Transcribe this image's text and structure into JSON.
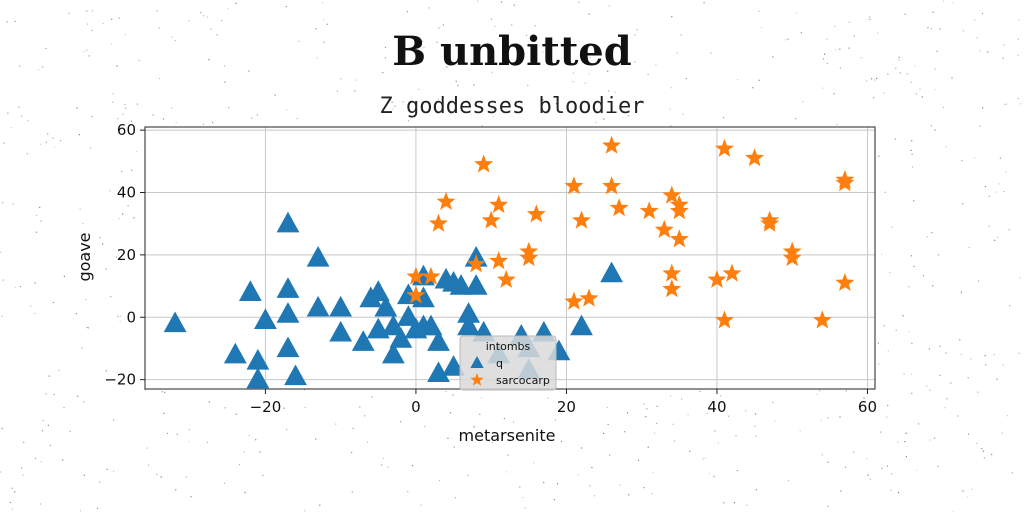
{
  "title": "B unbitted",
  "chart_data": {
    "type": "scatter",
    "title": "Z goddesses bloodier",
    "xlabel": "metarsenite",
    "ylabel": "goave",
    "xlim": [
      -36,
      61
    ],
    "ylim": [
      -23,
      61
    ],
    "xticks": [
      -20,
      0,
      20,
      40,
      60
    ],
    "yticks": [
      -20,
      0,
      20,
      40,
      60
    ],
    "grid": true,
    "legend": {
      "title": "intombs",
      "placement": "lower-center"
    },
    "series": [
      {
        "name": "q",
        "marker": "triangle",
        "color": "#1f77b4",
        "points": [
          [
            -32,
            -2
          ],
          [
            -24,
            -12
          ],
          [
            -21,
            -14
          ],
          [
            -21,
            -20
          ],
          [
            -22,
            8
          ],
          [
            -20,
            -1
          ],
          [
            -17,
            30
          ],
          [
            -17,
            -10
          ],
          [
            -16,
            -19
          ],
          [
            -17,
            9
          ],
          [
            -17,
            1
          ],
          [
            -13,
            19
          ],
          [
            -13,
            3
          ],
          [
            -10,
            3
          ],
          [
            -10,
            -5
          ],
          [
            -7,
            -8
          ],
          [
            -6,
            6
          ],
          [
            -5,
            8
          ],
          [
            -5,
            -4
          ],
          [
            -4,
            3
          ],
          [
            -3,
            -3
          ],
          [
            -3,
            -12
          ],
          [
            -2,
            -7
          ],
          [
            -1,
            7
          ],
          [
            -1,
            0
          ],
          [
            0,
            -4
          ],
          [
            1,
            13
          ],
          [
            1,
            6
          ],
          [
            1,
            -3
          ],
          [
            2,
            -3
          ],
          [
            3,
            -8
          ],
          [
            3,
            -18
          ],
          [
            4,
            12
          ],
          [
            5,
            11
          ],
          [
            5,
            -16
          ],
          [
            6,
            10
          ],
          [
            7,
            1
          ],
          [
            7,
            -3
          ],
          [
            8,
            10
          ],
          [
            8,
            19
          ],
          [
            9,
            -5
          ],
          [
            11,
            -12
          ],
          [
            14,
            -6
          ],
          [
            15,
            -10
          ],
          [
            15,
            -17
          ],
          [
            17,
            -5
          ],
          [
            19,
            -11
          ],
          [
            22,
            -3
          ],
          [
            26,
            14
          ]
        ]
      },
      {
        "name": "sarcocarp",
        "marker": "star",
        "color": "#ff7f0e",
        "points": [
          [
            0,
            7
          ],
          [
            0,
            13
          ],
          [
            2,
            13
          ],
          [
            3,
            30
          ],
          [
            4,
            37
          ],
          [
            8,
            17
          ],
          [
            9,
            49
          ],
          [
            10,
            31
          ],
          [
            11,
            36
          ],
          [
            11,
            18
          ],
          [
            12,
            12
          ],
          [
            15,
            21
          ],
          [
            15,
            19
          ],
          [
            16,
            33
          ],
          [
            21,
            42
          ],
          [
            21,
            5
          ],
          [
            22,
            31
          ],
          [
            23,
            6
          ],
          [
            26,
            55
          ],
          [
            26,
            42
          ],
          [
            27,
            35
          ],
          [
            31,
            34
          ],
          [
            33,
            28
          ],
          [
            34,
            39
          ],
          [
            34,
            14
          ],
          [
            34,
            9
          ],
          [
            35,
            36
          ],
          [
            35,
            34
          ],
          [
            35,
            25
          ],
          [
            40,
            12
          ],
          [
            41,
            54
          ],
          [
            41,
            -1
          ],
          [
            42,
            14
          ],
          [
            45,
            51
          ],
          [
            47,
            31
          ],
          [
            47,
            30
          ],
          [
            50,
            21
          ],
          [
            50,
            19
          ],
          [
            54,
            -1
          ],
          [
            57,
            44
          ],
          [
            57,
            43
          ],
          [
            57,
            11
          ]
        ]
      }
    ]
  }
}
